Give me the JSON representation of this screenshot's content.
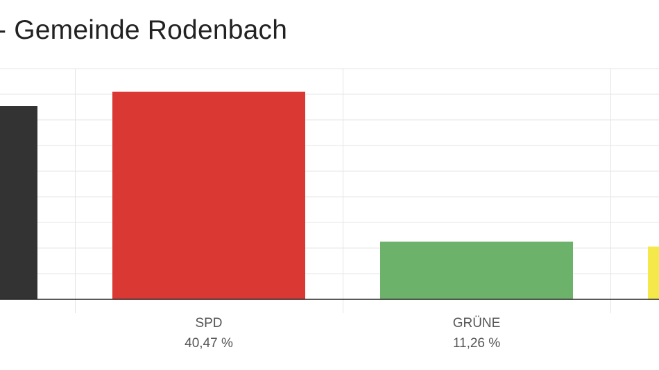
{
  "chart_data": {
    "type": "bar",
    "title": "- Gemeinde Rodenbach",
    "categories": [
      "",
      "SPD",
      "GRÜNE",
      ""
    ],
    "values": [
      37.7,
      40.47,
      11.26,
      10.3
    ],
    "value_labels": [
      "",
      "40,47 %",
      "11,26 %",
      ""
    ],
    "colors": [
      "#333333",
      "#da3832",
      "#6db26b",
      "#f4e84a"
    ],
    "ylim": [
      0,
      45
    ],
    "y_grid_step": 5,
    "grid": true,
    "xlabel": "",
    "ylabel": ""
  }
}
